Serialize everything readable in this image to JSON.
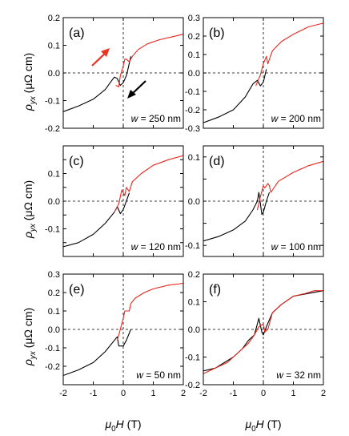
{
  "figure": {
    "ylabel_main": "ρ",
    "ylabel_sub": "yx",
    "ylabel_unit": " (μΩ cm)",
    "xlabel_main": "μ",
    "xlabel_sub": "0",
    "xlabel_var": "H",
    "xlabel_unit": " (T)",
    "annotation_prefix": "w",
    "sweep_up_color": "#e8261c",
    "sweep_down_color": "#000000",
    "accent_arrow_color": "#ee3322"
  },
  "chart_data": [
    {
      "panel": "(a)",
      "type": "line",
      "annotation": " = 250 nm",
      "xlim": [
        -2,
        2
      ],
      "ylim": [
        -0.2,
        0.2
      ],
      "yticks": [
        -0.2,
        -0.1,
        0.0,
        0.1,
        0.2
      ],
      "ytick_labels": [
        "-0.2",
        "-0.1",
        "0.0",
        "0.1",
        "0.2"
      ],
      "series": [
        {
          "color": "#000000",
          "x": [
            -2,
            -1.5,
            -1,
            -0.6,
            -0.4,
            -0.3,
            -0.2,
            -0.1,
            0,
            0.1,
            0.15,
            0.2,
            0.25
          ],
          "y": [
            -0.14,
            -0.12,
            -0.095,
            -0.06,
            -0.03,
            -0.015,
            -0.02,
            -0.045,
            -0.035,
            -0.01,
            0.01,
            0.035,
            0.06
          ]
        },
        {
          "color": "#e8261c",
          "x": [
            -0.25,
            -0.15,
            -0.1,
            0,
            0.05,
            0.1,
            0.2,
            0.3,
            0.5,
            0.8,
            1.2,
            1.6,
            2
          ],
          "y": [
            -0.045,
            -0.05,
            -0.01,
            0.025,
            0.05,
            0.05,
            0.04,
            0.06,
            0.085,
            0.105,
            0.12,
            0.13,
            0.14
          ]
        }
      ]
    },
    {
      "panel": "(b)",
      "type": "line",
      "annotation": " = 200 nm",
      "xlim": [
        -2,
        2
      ],
      "ylim": [
        -0.3,
        0.3
      ],
      "yticks": [
        -0.3,
        -0.2,
        -0.1,
        0.0,
        0.1,
        0.2,
        0.3
      ],
      "ytick_labels": [
        "-0.3",
        "-0.2",
        "-0.1",
        "0.0",
        "0.1",
        "0.2",
        "0.3"
      ],
      "series": [
        {
          "color": "#000000",
          "x": [
            -2,
            -1.5,
            -1,
            -0.6,
            -0.35,
            -0.2,
            -0.1,
            0,
            0.1
          ],
          "y": [
            -0.27,
            -0.24,
            -0.2,
            -0.13,
            -0.06,
            -0.04,
            -0.07,
            -0.05,
            0.02
          ]
        },
        {
          "color": "#e8261c",
          "x": [
            -0.25,
            -0.1,
            0,
            0.1,
            0.15,
            0.3,
            0.6,
            1,
            1.5,
            2
          ],
          "y": [
            -0.07,
            -0.01,
            0.05,
            0.09,
            0.05,
            0.12,
            0.17,
            0.21,
            0.25,
            0.27
          ]
        }
      ]
    },
    {
      "panel": "(c)",
      "type": "line",
      "annotation": " = 120 nm",
      "xlim": [
        -2,
        2
      ],
      "ylim": [
        -0.2,
        0.2
      ],
      "yticks": [
        -0.15,
        -0.1,
        -0.05,
        0.0,
        0.05,
        0.1,
        0.15
      ],
      "ytick_labels": [
        "",
        "-0.1",
        "",
        "0.0",
        "",
        "0.1",
        ""
      ],
      "series": [
        {
          "color": "#000000",
          "x": [
            -2,
            -1.5,
            -1,
            -0.6,
            -0.3,
            -0.2,
            -0.1,
            0,
            0.1,
            0.2
          ],
          "y": [
            -0.165,
            -0.15,
            -0.12,
            -0.08,
            -0.04,
            -0.02,
            -0.045,
            -0.03,
            0.0,
            0.03
          ]
        },
        {
          "color": "#e8261c",
          "x": [
            -0.3,
            -0.15,
            -0.05,
            0.05,
            0.1,
            0.2,
            0.3,
            0.6,
            1,
            1.5,
            2
          ],
          "y": [
            -0.04,
            -0.01,
            0.04,
            0.02,
            0.05,
            0.035,
            0.07,
            0.1,
            0.13,
            0.15,
            0.165
          ]
        }
      ]
    },
    {
      "panel": "(d)",
      "type": "line",
      "annotation": " = 100 nm",
      "xlim": [
        -2,
        2
      ],
      "ylim": [
        -0.125,
        0.125
      ],
      "yticks": [
        -0.1,
        -0.05,
        0.0,
        0.05,
        0.1
      ],
      "ytick_labels": [
        "-0.1",
        "",
        "0.0",
        "",
        "0.1"
      ],
      "series": [
        {
          "color": "#000000",
          "x": [
            -2,
            -1.5,
            -1,
            -0.6,
            -0.35,
            -0.2,
            -0.15,
            -0.05,
            0,
            0.1,
            0.2
          ],
          "y": [
            -0.09,
            -0.08,
            -0.065,
            -0.045,
            -0.02,
            0.0,
            0.02,
            -0.03,
            -0.025,
            0.0,
            0.02
          ]
        },
        {
          "color": "#e8261c",
          "x": [
            -0.2,
            -0.1,
            0,
            0.05,
            0.15,
            0.2,
            0.25,
            0.5,
            1,
            1.5,
            2
          ],
          "y": [
            -0.02,
            0.01,
            0.035,
            0.03,
            0.04,
            0.035,
            0.02,
            0.045,
            0.065,
            0.08,
            0.09
          ]
        }
      ]
    },
    {
      "panel": "(e)",
      "type": "line",
      "annotation": " = 50 nm",
      "xlim": [
        -2,
        2
      ],
      "ylim": [
        -0.3,
        0.3
      ],
      "yticks": [
        -0.2,
        -0.1,
        0.0,
        0.1,
        0.2,
        0.3
      ],
      "ytick_labels": [
        "-0.2",
        "-0.1",
        "0.0",
        "0.1",
        "0.2",
        "0.3"
      ],
      "series": [
        {
          "color": "#000000",
          "x": [
            -2,
            -1.5,
            -1,
            -0.6,
            -0.3,
            -0.2,
            -0.15,
            0,
            0.1,
            0.25
          ],
          "y": [
            -0.25,
            -0.22,
            -0.18,
            -0.12,
            -0.06,
            -0.04,
            -0.09,
            -0.09,
            -0.06,
            0.0
          ]
        },
        {
          "color": "#e8261c",
          "x": [
            -0.2,
            -0.1,
            0,
            0.05,
            0.2,
            0.25,
            0.4,
            0.7,
            1,
            1.5,
            2
          ],
          "y": [
            -0.06,
            0.0,
            0.06,
            0.1,
            0.1,
            0.14,
            0.17,
            0.2,
            0.22,
            0.24,
            0.25
          ]
        }
      ]
    },
    {
      "panel": "(f)",
      "type": "line",
      "annotation": " = 32 nm",
      "xlim": [
        -2,
        2
      ],
      "ylim": [
        -0.2,
        0.2
      ],
      "yticks": [
        -0.2,
        -0.1,
        0.0,
        0.1,
        0.2
      ],
      "ytick_labels": [
        "-0.2",
        "-0.1",
        "0.0",
        "0.1",
        "0.2"
      ],
      "series": [
        {
          "color": "#000000",
          "x": [
            -2,
            -1.6,
            -1.3,
            -1,
            -0.7,
            -0.5,
            -0.3,
            -0.15,
            -0.05,
            0,
            0.1,
            0.3,
            0.6,
            1,
            1.5,
            2
          ],
          "y": [
            -0.15,
            -0.14,
            -0.12,
            -0.1,
            -0.07,
            -0.04,
            -0.02,
            0.04,
            -0.01,
            -0.02,
            0.01,
            0.06,
            0.09,
            0.12,
            0.13,
            0.14
          ]
        },
        {
          "color": "#e8261c",
          "x": [
            -2,
            -1.6,
            -1.2,
            -0.8,
            -0.5,
            -0.3,
            -0.15,
            0,
            0.05,
            0.15,
            0.3,
            0.6,
            1,
            1.4,
            1.7,
            2
          ],
          "y": [
            -0.16,
            -0.14,
            -0.12,
            -0.08,
            -0.05,
            -0.02,
            0.01,
            0.02,
            -0.01,
            0.0,
            0.06,
            0.09,
            0.12,
            0.13,
            0.14,
            0.14
          ]
        }
      ]
    }
  ]
}
